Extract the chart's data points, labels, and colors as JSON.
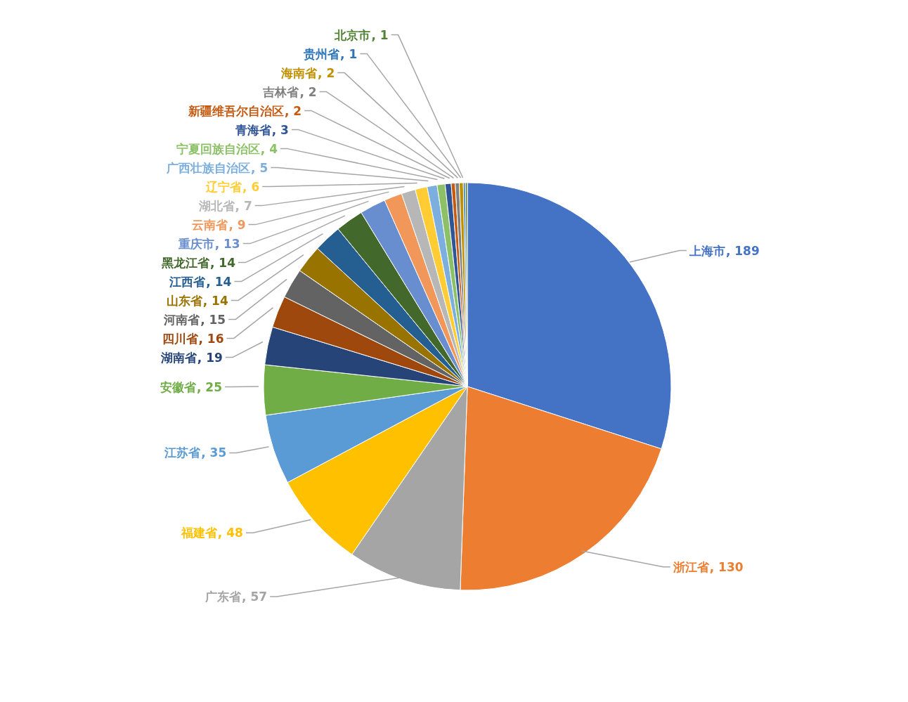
{
  "chart_data": {
    "type": "pie",
    "categories": [
      "上海市",
      "浙江省",
      "广东省",
      "福建省",
      "江苏省",
      "安徽省",
      "湖南省",
      "四川省",
      "河南省",
      "山东省",
      "江西省",
      "黑龙江省",
      "重庆市",
      "云南省",
      "湖北省",
      "辽宁省",
      "广西壮族自治区",
      "宁夏回族自治区",
      "青海省",
      "新疆维吾尔自治区",
      "吉林省",
      "海南省",
      "贵州省",
      "北京市"
    ],
    "values": [
      189,
      130,
      57,
      48,
      35,
      25,
      19,
      16,
      15,
      14,
      14,
      14,
      13,
      9,
      7,
      6,
      5,
      4,
      3,
      2,
      2,
      2,
      1,
      1
    ],
    "colors": [
      "#4472c4",
      "#ed7d31",
      "#a5a5a5",
      "#ffc000",
      "#5b9bd5",
      "#70ad47",
      "#264478",
      "#9e480e",
      "#636363",
      "#997300",
      "#255e91",
      "#43682b",
      "#698ed0",
      "#f1975a",
      "#b7b7b7",
      "#ffcd33",
      "#7cafdd",
      "#8cc168",
      "#2f5597",
      "#c55a11",
      "#7f7f7f",
      "#bf9000",
      "#2e75b6",
      "#548235"
    ],
    "value_labels": [
      ", 189",
      ", 130",
      ", 57",
      ", 48",
      ", 35",
      ", 25",
      ", 19",
      ", 16",
      ", 15",
      ", 14",
      ", 14",
      ", 14",
      ", 13",
      ", 9",
      ", 7",
      ", 6",
      ", 5",
      ", 4",
      ", 3",
      ", 2",
      ", 2",
      ", 2",
      ", 1",
      ", 1"
    ]
  }
}
